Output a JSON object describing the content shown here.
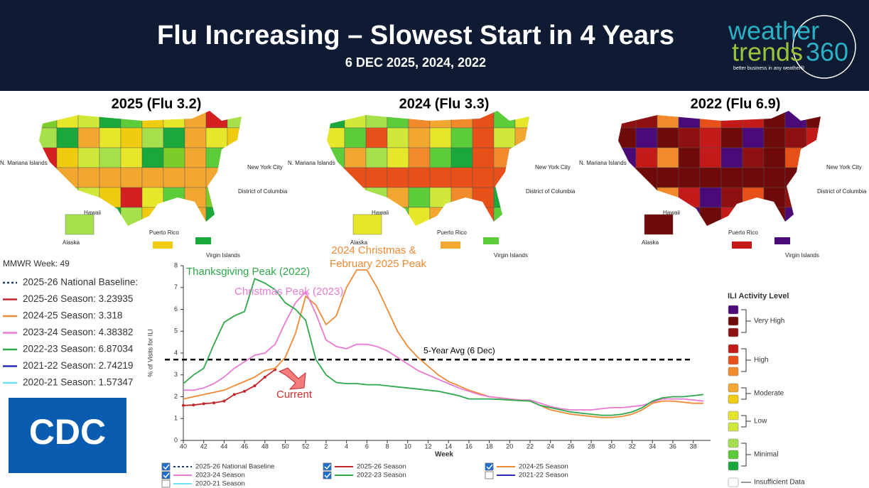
{
  "header": {
    "title": "Flu Increasing – Slowest Start in 4 Years",
    "subtitle": "6 DEC 2025, 2024, 2022",
    "logo": {
      "word1": "weather",
      "word2": "trends",
      "word3": "360",
      "tagline": "better business in any weather®"
    }
  },
  "maps": [
    {
      "title": "2025 (Flu 3.2)",
      "labels": [
        "N. Mariana Islands",
        "New York City",
        "District of Columbia",
        "Hawaii",
        "Alaska",
        "Puerto Rico",
        "Virgin Islands"
      ]
    },
    {
      "title": "2024 (Flu 3.3)",
      "labels": [
        "N. Mariana Islands",
        "New York City",
        "District of Columbia",
        "Hawaii",
        "Alaska",
        "Puerto Rico",
        "Virgin Islands"
      ]
    },
    {
      "title": "2022 (Flu 6.9)",
      "labels": [
        "N. Mariana Islands",
        "New York City",
        "District of Columbia",
        "Hawaii",
        "Alaska",
        "Puerto Rico",
        "Virgin Islands"
      ]
    }
  ],
  "side_legend": {
    "heading": "MMWR Week: 49",
    "items": [
      {
        "text": "2025-26 National Baseline:",
        "color": "#1f3b73",
        "dashed": true
      },
      {
        "text": "2025-26 Season: 3.23935",
        "color": "#c0282d",
        "dashed": false
      },
      {
        "text": "2024-25 Season: 3.318",
        "color": "#ee8a35",
        "dashed": false
      },
      {
        "text": "2023-24 Season: 4.38382",
        "color": "#e97ad2",
        "dashed": false
      },
      {
        "text": "2022-23 Season: 6.87034",
        "color": "#2ea84a",
        "dashed": false
      },
      {
        "text": "2021-22 Season: 2.74219",
        "color": "#2a2ab8",
        "dashed": false
      },
      {
        "text": "2020-21 Season: 1.57347",
        "color": "#6fe3f0",
        "dashed": false
      }
    ]
  },
  "cdc_logo": "CDC",
  "chart_data": {
    "type": "line",
    "x_label": "Week",
    "y_label": "% of Visits for ILI",
    "categories": [
      40,
      null,
      42,
      null,
      44,
      null,
      46,
      null,
      48,
      null,
      50,
      null,
      52,
      null,
      2,
      null,
      4,
      null,
      6,
      null,
      8,
      null,
      10,
      null,
      12,
      null,
      14,
      null,
      16,
      null,
      18,
      null,
      20,
      null,
      22,
      null,
      24,
      null,
      26,
      null,
      28,
      null,
      30,
      null,
      32,
      null,
      34,
      null,
      36,
      null,
      38,
      null
    ],
    "ylim": [
      0,
      8
    ],
    "yticks": [
      0,
      1,
      2,
      3,
      4,
      5,
      6,
      7,
      8
    ],
    "series": [
      {
        "name": "2025-26 Season",
        "color": "#c0282d",
        "markers": true,
        "values": [
          1.6,
          1.62,
          1.68,
          1.72,
          1.8,
          2.1,
          2.25,
          2.5,
          2.9,
          3.24,
          null,
          null,
          null,
          null,
          null,
          null,
          null,
          null,
          null,
          null,
          null,
          null,
          null,
          null,
          null,
          null,
          null,
          null,
          null,
          null,
          null,
          null,
          null,
          null,
          null,
          null,
          null,
          null,
          null,
          null,
          null,
          null,
          null,
          null,
          null,
          null,
          null,
          null,
          null,
          null,
          null,
          null
        ]
      },
      {
        "name": "2024-25 Season",
        "color": "#ee8a35",
        "markers": false,
        "values": [
          1.9,
          2.0,
          2.1,
          2.2,
          2.3,
          2.5,
          2.7,
          2.9,
          3.2,
          3.3,
          3.8,
          4.9,
          6.6,
          6.2,
          5.3,
          5.7,
          7.0,
          7.8,
          7.8,
          7.0,
          6.0,
          5.0,
          4.3,
          3.8,
          3.4,
          3.0,
          2.7,
          2.5,
          2.3,
          2.15,
          2.0,
          1.95,
          1.9,
          1.85,
          1.8,
          1.6,
          1.4,
          1.3,
          1.2,
          1.15,
          1.1,
          1.05,
          1.05,
          1.1,
          1.2,
          1.4,
          1.7,
          1.8,
          1.8,
          1.75,
          1.7,
          1.7
        ]
      },
      {
        "name": "2023-24 Season",
        "color": "#e97ad2",
        "markers": false,
        "values": [
          2.3,
          2.3,
          2.4,
          2.6,
          2.9,
          3.3,
          3.6,
          3.9,
          4.0,
          4.4,
          5.4,
          6.3,
          6.8,
          5.8,
          4.6,
          4.3,
          4.2,
          4.4,
          4.4,
          4.3,
          4.1,
          3.8,
          3.5,
          3.2,
          3.0,
          2.8,
          2.6,
          2.4,
          2.25,
          2.1,
          2.0,
          1.95,
          1.9,
          1.85,
          1.85,
          1.7,
          1.55,
          1.45,
          1.4,
          1.4,
          1.4,
          1.45,
          1.5,
          1.5,
          1.55,
          1.6,
          1.75,
          1.9,
          1.9,
          1.9,
          1.85,
          1.8
        ]
      },
      {
        "name": "2022-23 Season",
        "color": "#2ea84a",
        "markers": false,
        "values": [
          2.6,
          3.0,
          3.3,
          4.4,
          5.4,
          5.7,
          5.9,
          7.4,
          7.2,
          6.9,
          6.3,
          6.0,
          5.5,
          3.7,
          3.0,
          2.65,
          2.6,
          2.6,
          2.55,
          2.55,
          2.5,
          2.45,
          2.4,
          2.35,
          2.3,
          2.25,
          2.15,
          2.05,
          1.9,
          1.9,
          1.9,
          1.88,
          1.85,
          1.82,
          1.8,
          1.6,
          1.5,
          1.4,
          1.3,
          1.25,
          1.2,
          1.15,
          1.15,
          1.2,
          1.3,
          1.5,
          1.8,
          1.95,
          2.0,
          2.0,
          2.05,
          2.1
        ]
      }
    ],
    "reference_line": {
      "value": 3.7,
      "label": "5-Year Avg (6 Dec)",
      "color": "#000000"
    },
    "annotations": [
      {
        "text": "Thanksgiving Peak (2022)",
        "color": "#2ea84a"
      },
      {
        "text": "Christmas Peak (2023)",
        "color": "#e97ad2"
      },
      {
        "text": "2024 Christmas &",
        "color": "#ee8a35"
      },
      {
        "text": "February 2025 Peak",
        "color": "#ee8a35"
      },
      {
        "text": "Current",
        "color": "#d42a2a"
      }
    ],
    "legend": [
      {
        "name": "2025-26 National Baseline",
        "color": "#1f3b73",
        "checked": true,
        "dashed": true
      },
      {
        "name": "2025-26 Season",
        "color": "#c0282d",
        "checked": true,
        "dashed": false
      },
      {
        "name": "2024-25 Season",
        "color": "#ee8a35",
        "checked": true,
        "dashed": false
      },
      {
        "name": "2023-24 Season",
        "color": "#e97ad2",
        "checked": true,
        "dashed": false
      },
      {
        "name": "2022-23 Season",
        "color": "#2ea84a",
        "checked": true,
        "dashed": false
      },
      {
        "name": "2021-22 Season",
        "color": "#2a2ab8",
        "checked": false,
        "dashed": false
      },
      {
        "name": "2020-21 Season",
        "color": "#6fe3f0",
        "checked": false,
        "dashed": false
      }
    ]
  },
  "ili_legend": {
    "title": "ILI Activity Level",
    "groups": [
      {
        "label": "Very High",
        "colors": [
          "#4a0a78",
          "#6e0a0a",
          "#8e1010"
        ]
      },
      {
        "label": "High",
        "colors": [
          "#c41a1a",
          "#e8501a",
          "#f08a2a"
        ]
      },
      {
        "label": "Moderate",
        "colors": [
          "#f2a830",
          "#f0cc10"
        ]
      },
      {
        "label": "Low",
        "colors": [
          "#e6e62a",
          "#cfe83a"
        ]
      },
      {
        "label": "Minimal",
        "colors": [
          "#a6e04a",
          "#5ccc3a",
          "#1aa83a"
        ]
      },
      {
        "label": "Insufficient Data",
        "colors": [
          "#ffffff"
        ]
      }
    ]
  }
}
